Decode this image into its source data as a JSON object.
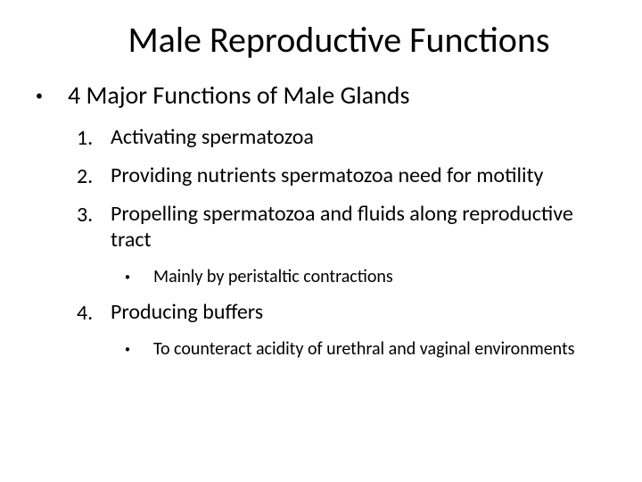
{
  "slide": {
    "title": "Male Reproductive Functions",
    "background_color": "#ffffff",
    "text_color": "#000000",
    "title_fontsize": 40,
    "level1_fontsize": 28,
    "level2_fontsize": 24,
    "level3_fontsize": 20
  },
  "content": {
    "level1_text": "4 Major Functions of Male Glands",
    "items": [
      {
        "number": "1.",
        "text": "Activating spermatozoa"
      },
      {
        "number": "2.",
        "text": "Providing nutrients spermatozoa need for motility"
      },
      {
        "number": "3.",
        "text": "Propelling spermatozoa and fluids along reproductive tract",
        "sub": [
          "Mainly by peristaltic contractions"
        ]
      },
      {
        "number": "4.",
        "text": "Producing buffers",
        "sub": [
          "To counteract acidity of urethral and vaginal environments"
        ]
      }
    ]
  }
}
